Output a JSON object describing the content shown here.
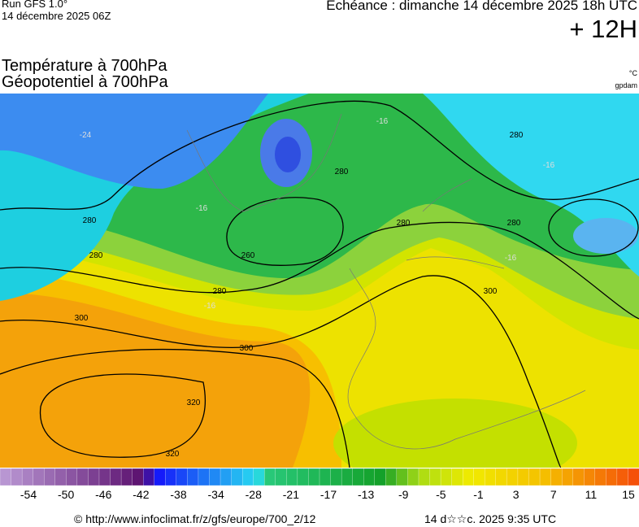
{
  "header": {
    "run": "Run GFS 1.0°",
    "date": "14 décembre 2025 06Z",
    "echeance": "Echéance : dimanche 14 décembre 2025 18h UTC",
    "offset": "+ 12H"
  },
  "titles": [
    "Température à 700hPa",
    "Géopotentiel à 700hPa"
  ],
  "units": [
    "°C",
    "gpdam"
  ],
  "contour_labels": [
    "-24",
    "280",
    "280",
    "280",
    "300",
    "300",
    "320",
    "320",
    "260",
    "280",
    "280",
    "280",
    "280",
    "300",
    "-16",
    "-16",
    "-16",
    "-16",
    "-16"
  ],
  "scale": {
    "labels": [
      "-54",
      "-50",
      "-46",
      "-42",
      "-38",
      "-34",
      "-28",
      "-21",
      "-17",
      "-13",
      "-9",
      "-5",
      "-1",
      "3",
      "7",
      "11",
      "15"
    ]
  },
  "footer": {
    "source": "© http://www.infoclimat.fr/z/gfs/europe/700_2/12",
    "timestamp": "14 d☆☆c. 2025  9:35 UTC"
  }
}
